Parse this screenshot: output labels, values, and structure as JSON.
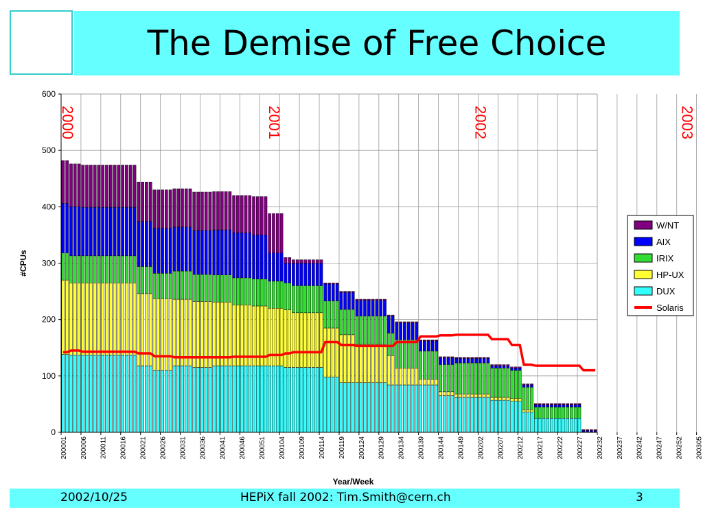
{
  "slide": {
    "title": "The Demise of Free Choice",
    "footer_date": "2002/10/25",
    "footer_center": "HEPiX fall 2002: Tim.Smith@cern.ch",
    "footer_page": "3",
    "accent_color": "#66FFFF"
  },
  "chart_data": {
    "type": "bar",
    "stacked": true,
    "xlabel": "Year/Week",
    "ylabel": "#CPUs",
    "ylim": [
      0,
      600
    ],
    "yticks": [
      0,
      100,
      200,
      300,
      400,
      500,
      600
    ],
    "grid": true,
    "legend_position": "right",
    "x_tick_labels": [
      "200001",
      "200006",
      "200011",
      "200016",
      "200021",
      "200026",
      "200031",
      "200036",
      "200041",
      "200046",
      "200051",
      "200104",
      "200109",
      "200114",
      "200119",
      "200124",
      "200129",
      "200134",
      "200139",
      "200144",
      "200149",
      "200202",
      "200207",
      "200212",
      "200217",
      "200222",
      "200227",
      "200232",
      "200237",
      "200242",
      "200247",
      "200252",
      "200305"
    ],
    "year_labels": [
      "2000",
      "2001",
      "2002",
      "2003"
    ],
    "weeks_between_ticks": 5,
    "segments": [
      {
        "weeks": 2,
        "DUX": 138,
        "HP-UX": 132,
        "IRIX": 48,
        "AIX": 88,
        "W/NT": 76,
        "Solaris": 142
      },
      {
        "weeks": 3,
        "DUX": 137,
        "HP-UX": 128,
        "IRIX": 48,
        "AIX": 87,
        "W/NT": 76,
        "Solaris": 145
      },
      {
        "weeks": 14,
        "DUX": 137,
        "HP-UX": 128,
        "IRIX": 48,
        "AIX": 86,
        "W/NT": 75,
        "Solaris": 143
      },
      {
        "weeks": 4,
        "DUX": 118,
        "HP-UX": 128,
        "IRIX": 48,
        "AIX": 80,
        "W/NT": 70,
        "Solaris": 140
      },
      {
        "weeks": 5,
        "DUX": 110,
        "HP-UX": 127,
        "IRIX": 45,
        "AIX": 80,
        "W/NT": 68,
        "Solaris": 135
      },
      {
        "weeks": 5,
        "DUX": 118,
        "HP-UX": 118,
        "IRIX": 50,
        "AIX": 78,
        "W/NT": 68,
        "Solaris": 133
      },
      {
        "weeks": 5,
        "DUX": 115,
        "HP-UX": 117,
        "IRIX": 48,
        "AIX": 78,
        "W/NT": 68,
        "Solaris": 133
      },
      {
        "weeks": 5,
        "DUX": 118,
        "HP-UX": 113,
        "IRIX": 48,
        "AIX": 80,
        "W/NT": 68,
        "Solaris": 133
      },
      {
        "weeks": 5,
        "DUX": 118,
        "HP-UX": 108,
        "IRIX": 48,
        "AIX": 80,
        "W/NT": 66,
        "Solaris": 134
      },
      {
        "weeks": 4,
        "DUX": 118,
        "HP-UX": 106,
        "IRIX": 48,
        "AIX": 78,
        "W/NT": 68,
        "Solaris": 134
      },
      {
        "weeks": 4,
        "DUX": 118,
        "HP-UX": 102,
        "IRIX": 48,
        "AIX": 50,
        "W/NT": 70,
        "Solaris": 137
      },
      {
        "weeks": 2,
        "DUX": 115,
        "HP-UX": 102,
        "IRIX": 48,
        "AIX": 35,
        "W/NT": 10,
        "Solaris": 140
      },
      {
        "weeks": 8,
        "DUX": 115,
        "HP-UX": 97,
        "IRIX": 48,
        "AIX": 40,
        "W/NT": 6,
        "Solaris": 142
      },
      {
        "weeks": 4,
        "DUX": 98,
        "HP-UX": 87,
        "IRIX": 48,
        "AIX": 30,
        "W/NT": 2,
        "Solaris": 160
      },
      {
        "weeks": 4,
        "DUX": 88,
        "HP-UX": 85,
        "IRIX": 45,
        "AIX": 30,
        "W/NT": 2,
        "Solaris": 155
      },
      {
        "weeks": 8,
        "DUX": 88,
        "HP-UX": 68,
        "IRIX": 50,
        "AIX": 28,
        "W/NT": 2,
        "Solaris": 153
      },
      {
        "weeks": 2,
        "DUX": 84,
        "HP-UX": 52,
        "IRIX": 40,
        "AIX": 30,
        "W/NT": 2,
        "Solaris": 153
      },
      {
        "weeks": 6,
        "DUX": 84,
        "HP-UX": 30,
        "IRIX": 50,
        "AIX": 30,
        "W/NT": 2,
        "Solaris": 160
      },
      {
        "weeks": 5,
        "DUX": 84,
        "HP-UX": 10,
        "IRIX": 50,
        "AIX": 18,
        "W/NT": 2,
        "Solaris": 170
      },
      {
        "weeks": 4,
        "DUX": 65,
        "HP-UX": 7,
        "IRIX": 48,
        "AIX": 12,
        "W/NT": 2,
        "Solaris": 172
      },
      {
        "weeks": 9,
        "DUX": 62,
        "HP-UX": 6,
        "IRIX": 55,
        "AIX": 8,
        "W/NT": 2,
        "Solaris": 173
      },
      {
        "weeks": 5,
        "DUX": 57,
        "HP-UX": 5,
        "IRIX": 52,
        "AIX": 4,
        "W/NT": 2,
        "Solaris": 165
      },
      {
        "weeks": 3,
        "DUX": 55,
        "HP-UX": 5,
        "IRIX": 50,
        "AIX": 4,
        "W/NT": 2,
        "Solaris": 155
      },
      {
        "weeks": 3,
        "DUX": 36,
        "HP-UX": 4,
        "IRIX": 40,
        "AIX": 4,
        "W/NT": 2,
        "Solaris": 120
      },
      {
        "weeks": 12,
        "DUX": 25,
        "HP-UX": 0,
        "IRIX": 20,
        "AIX": 4,
        "W/NT": 2,
        "Solaris": 118
      },
      {
        "weeks": 4,
        "DUX": 1,
        "HP-UX": 0,
        "IRIX": 0,
        "AIX": 2,
        "W/NT": 2,
        "Solaris": 110
      }
    ],
    "series": [
      {
        "name": "W/NT",
        "kind": "bar",
        "color": "#800080"
      },
      {
        "name": "AIX",
        "kind": "bar",
        "color": "#0000FF"
      },
      {
        "name": "IRIX",
        "kind": "bar",
        "color": "#33DD33"
      },
      {
        "name": "HP-UX",
        "kind": "bar",
        "color": "#FFFF33"
      },
      {
        "name": "DUX",
        "kind": "bar",
        "color": "#33FFFF"
      },
      {
        "name": "Solaris",
        "kind": "line",
        "color": "#FF0000"
      }
    ]
  }
}
